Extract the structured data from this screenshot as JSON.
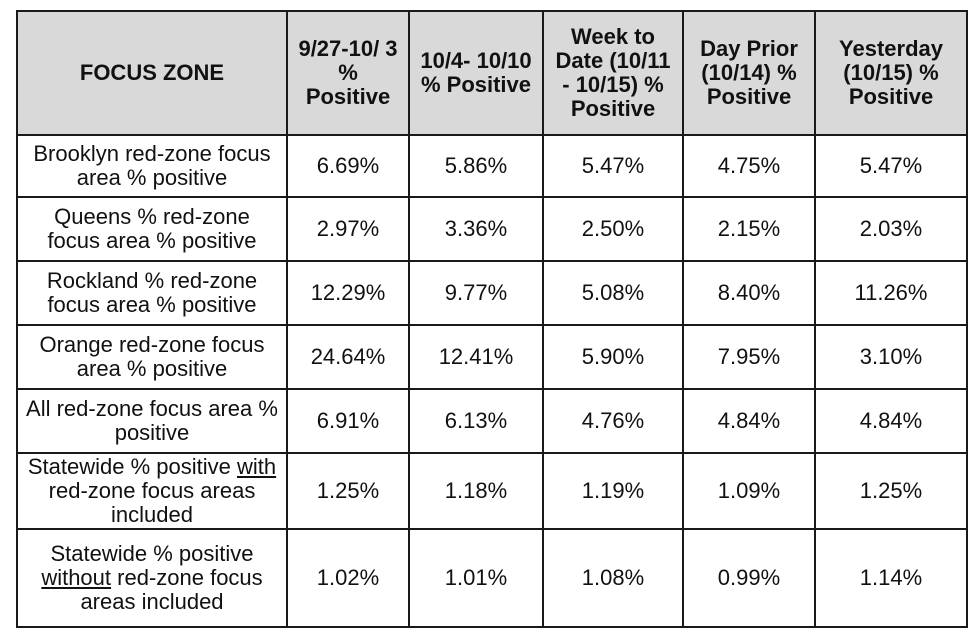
{
  "table": {
    "headers": [
      "FOCUS ZONE",
      "9/27-10/ 3 % Positive",
      "10/4- 10/10 % Positive",
      "Week to Date (10/11 - 10/15) % Positive",
      "Day Prior (10/14) % Positive",
      "Yesterday (10/15) % Positive"
    ],
    "rows": [
      {
        "label": "Brooklyn red-zone focus area % positive",
        "values": [
          "6.69%",
          "5.86%",
          "5.47%",
          "4.75%",
          "5.47%"
        ]
      },
      {
        "label": "Queens % red-zone focus area % positive",
        "values": [
          "2.97%",
          "3.36%",
          "2.50%",
          "2.15%",
          "2.03%"
        ]
      },
      {
        "label": "Rockland % red-zone focus area % positive",
        "values": [
          "12.29%",
          "9.77%",
          "5.08%",
          "8.40%",
          "11.26%"
        ]
      },
      {
        "label": "Orange red-zone focus area % positive",
        "values": [
          "24.64%",
          "12.41%",
          "5.90%",
          "7.95%",
          "3.10%"
        ]
      },
      {
        "label": "All red-zone focus area % positive",
        "values": [
          "6.91%",
          "6.13%",
          "4.76%",
          "4.84%",
          "4.84%"
        ]
      },
      {
        "label_before": "Statewide % positive ",
        "label_emph": "with",
        "label_after": " red-zone focus areas included",
        "values": [
          "1.25%",
          "1.18%",
          "1.19%",
          "1.09%",
          "1.25%"
        ]
      },
      {
        "label_before": "Statewide % positive ",
        "label_emph": "without",
        "label_after": " red-zone focus areas included",
        "values": [
          "1.02%",
          "1.01%",
          "1.08%",
          "0.99%",
          "1.14%"
        ]
      }
    ]
  }
}
